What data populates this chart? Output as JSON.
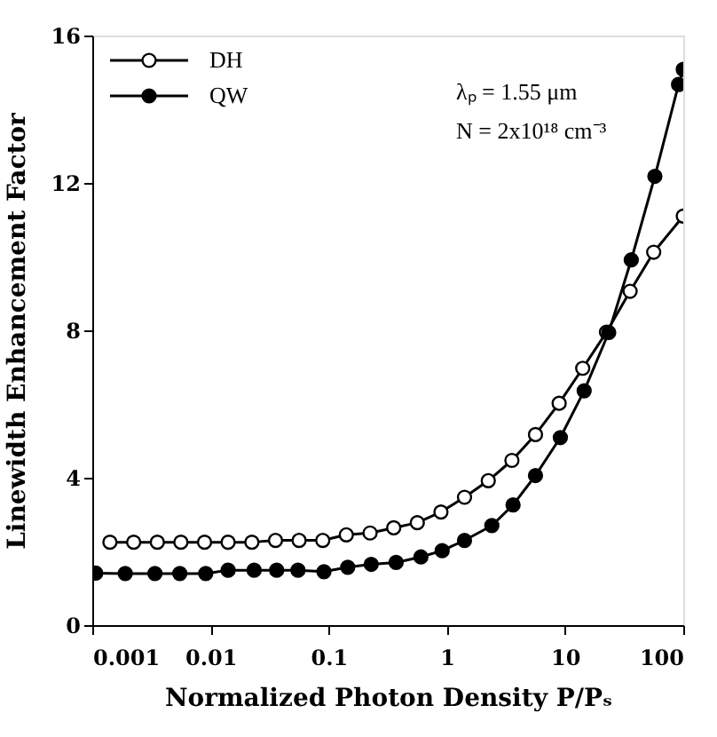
{
  "chart_data": {
    "type": "line",
    "xlabel": "Normalized Photon Density P/Pₛ",
    "ylabel": "Linewidth Enhancement Factor",
    "log": "x",
    "xlim": [
      0.001,
      100
    ],
    "xticks": [
      0.001,
      0.01,
      0.1,
      1,
      10,
      100
    ],
    "ylim": [
      0,
      16
    ],
    "yticks": [
      0,
      4,
      8,
      12,
      16
    ],
    "grid": false,
    "legend": "top left",
    "marker": "circle",
    "line_style": "solid",
    "annotations": [
      "λₚ = 1.55 μm",
      "N = 2x10¹⁸ cm⁻³"
    ],
    "series": [
      {
        "name": "DH",
        "color": "#000000",
        "x": [
          0.00141,
          0.00224,
          0.00355,
          0.00562,
          0.00891,
          0.0141,
          0.0224,
          0.0355,
          0.0562,
          0.0891,
          0.141,
          0.224,
          0.355,
          0.562,
          0.891,
          1.41,
          2.24,
          3.55,
          5.62,
          8.91,
          14.1,
          22.4,
          35.5,
          56.2,
          100
        ],
        "values": [
          2.25,
          2.25,
          2.25,
          2.25,
          2.25,
          2.25,
          2.25,
          2.3,
          2.3,
          2.3,
          2.45,
          2.5,
          2.64,
          2.78,
          3.07,
          3.47,
          3.92,
          4.47,
          5.17,
          6.02,
          6.97,
          7.95,
          9.06,
          10.12,
          11.1
        ]
      },
      {
        "name": "QW",
        "color": "#000000",
        "x": [
          0.00107,
          0.0019,
          0.00339,
          0.0055,
          0.00912,
          0.0141,
          0.0234,
          0.0363,
          0.055,
          0.0912,
          0.145,
          0.229,
          0.372,
          0.603,
          0.912,
          1.41,
          2.4,
          3.63,
          5.62,
          9.12,
          14.5,
          23.4,
          36.3,
          57.5,
          91.2,
          100
        ],
        "values": [
          1.41,
          1.4,
          1.4,
          1.4,
          1.4,
          1.49,
          1.49,
          1.49,
          1.49,
          1.45,
          1.57,
          1.65,
          1.7,
          1.85,
          2.02,
          2.3,
          2.7,
          3.26,
          4.06,
          5.09,
          6.36,
          7.94,
          9.91,
          12.18,
          14.67,
          15.08
        ]
      }
    ]
  }
}
